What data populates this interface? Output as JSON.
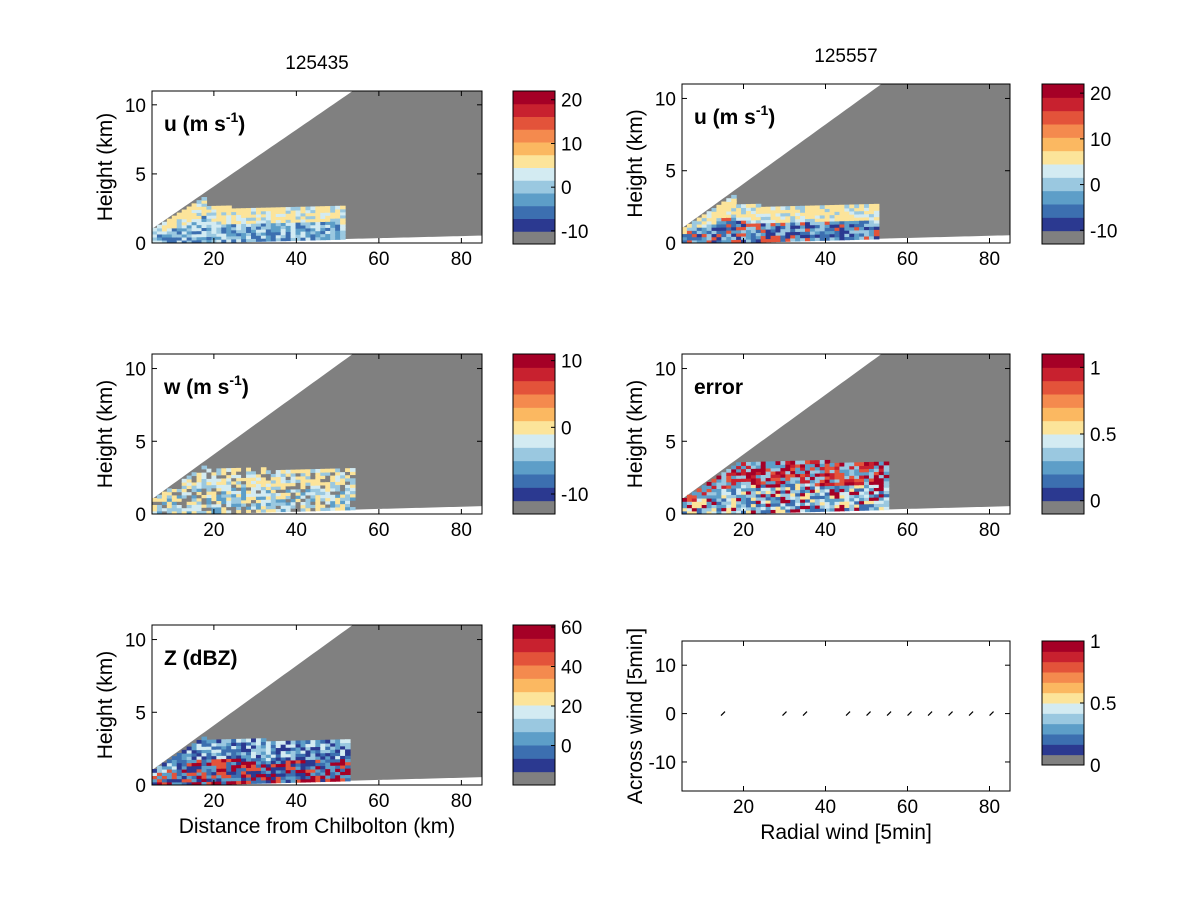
{
  "colors": {
    "levels": [
      "#808080",
      "#2b3990",
      "#3c6fb0",
      "#5d9ec8",
      "#9ac8e0",
      "#d3ebf2",
      "#fce49a",
      "#fbb861",
      "#f48a4e",
      "#e3533a",
      "#c8212f",
      "#a50026"
    ],
    "cone": "#808080",
    "frame": "#000000"
  },
  "chart_data": [
    {
      "type": "heatmap",
      "title": "125435",
      "annotation": "u (m s",
      "annotation_sup": "-1",
      "annotation_tail": ")",
      "ylabel": "Height (km)",
      "xlabel": "",
      "xlim": [
        5,
        85
      ],
      "ylim": [
        0,
        11
      ],
      "xticks": [
        "20",
        "40",
        "60",
        "80"
      ],
      "yticks": [
        "0",
        "5",
        "10"
      ],
      "colorbar": {
        "range": [
          -13,
          22
        ],
        "ticks": [
          "-10",
          "0",
          "10",
          "20"
        ]
      },
      "echo": {
        "x_end_km": 51,
        "top_km": 2.5
      }
    },
    {
      "type": "heatmap",
      "title": "125557",
      "annotation": "u (m s",
      "annotation_sup": "-1",
      "annotation_tail": ")",
      "ylabel": "Height (km)",
      "xlabel": "",
      "xlim": [
        5,
        85
      ],
      "ylim": [
        0,
        11
      ],
      "xticks": [
        "20",
        "40",
        "60",
        "80"
      ],
      "yticks": [
        "0",
        "5",
        "10"
      ],
      "colorbar": {
        "range": [
          -13,
          22
        ],
        "ticks": [
          "-10",
          "0",
          "10",
          "20"
        ]
      },
      "echo": {
        "x_end_km": 52,
        "top_km": 2.5
      }
    },
    {
      "type": "heatmap",
      "title": "",
      "annotation": "w (m s",
      "annotation_sup": "-1",
      "annotation_tail": ")",
      "ylabel": "Height (km)",
      "xlabel": "",
      "xlim": [
        5,
        85
      ],
      "ylim": [
        0,
        11
      ],
      "xticks": [
        "20",
        "40",
        "60",
        "80"
      ],
      "yticks": [
        "0",
        "5",
        "10"
      ],
      "colorbar": {
        "range": [
          -13,
          11
        ],
        "ticks": [
          "-10",
          "0",
          "10"
        ]
      },
      "echo": {
        "x_end_km": 54,
        "top_km": 3
      }
    },
    {
      "type": "heatmap",
      "title": "",
      "annotation": "error",
      "annotation_sup": "",
      "annotation_tail": "",
      "ylabel": "Height (km)",
      "xlabel": "",
      "xlim": [
        5,
        85
      ],
      "ylim": [
        0,
        11
      ],
      "xticks": [
        "20",
        "40",
        "60",
        "80"
      ],
      "yticks": [
        "0",
        "5",
        "10"
      ],
      "colorbar": {
        "range": [
          -0.1,
          1.1
        ],
        "ticks": [
          "0",
          "0.5",
          "1"
        ]
      },
      "echo": {
        "x_end_km": 55,
        "top_km": 3.5
      }
    },
    {
      "type": "heatmap",
      "title": "",
      "annotation": "Z (dBZ)",
      "annotation_sup": "",
      "annotation_tail": "",
      "ylabel": "Height (km)",
      "xlabel": "Distance from Chilbolton (km)",
      "xlim": [
        5,
        85
      ],
      "ylim": [
        0,
        11
      ],
      "xticks": [
        "20",
        "40",
        "60",
        "80"
      ],
      "yticks": [
        "0",
        "5",
        "10"
      ],
      "colorbar": {
        "range": [
          -20,
          61
        ],
        "ticks": [
          "0",
          "20",
          "40",
          "60"
        ]
      },
      "echo": {
        "x_end_km": 52,
        "top_km": 3
      }
    },
    {
      "type": "scatter",
      "title": "",
      "ylabel": "Across wind [5min]",
      "xlabel": "Radial wind [5min]",
      "xlim": [
        5,
        85
      ],
      "ylim": [
        -16,
        15
      ],
      "xticks": [
        "20",
        "40",
        "60",
        "80"
      ],
      "yticks": [
        "-10",
        "0",
        "10"
      ],
      "colorbar": {
        "range": [
          0,
          1
        ],
        "ticks": [
          "0",
          "0.5",
          "1"
        ]
      },
      "points": [
        {
          "x": 15,
          "y": 0
        },
        {
          "x": 30,
          "y": 0
        },
        {
          "x": 35,
          "y": 0
        },
        {
          "x": 45.5,
          "y": 0
        },
        {
          "x": 50.5,
          "y": 0
        },
        {
          "x": 55.5,
          "y": 0
        },
        {
          "x": 60.5,
          "y": 0
        },
        {
          "x": 65.5,
          "y": 0
        },
        {
          "x": 70.5,
          "y": 0
        },
        {
          "x": 75.5,
          "y": 0
        },
        {
          "x": 80.5,
          "y": 0
        }
      ]
    }
  ]
}
